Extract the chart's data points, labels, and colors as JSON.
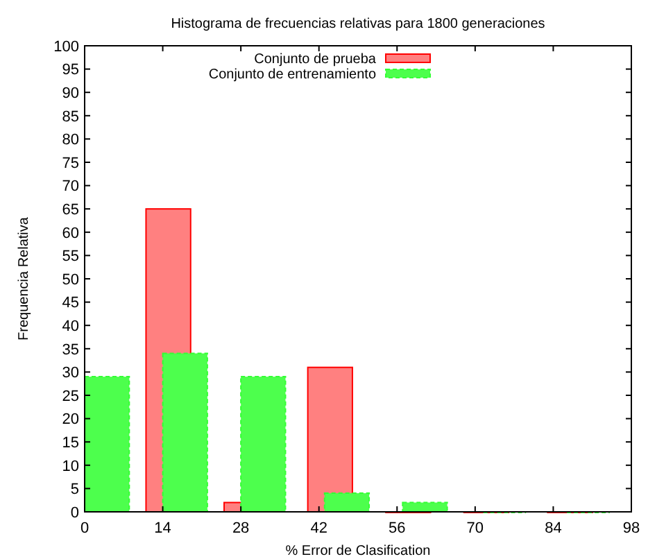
{
  "chart_data": {
    "type": "bar",
    "title": "Histograma de frecuencias relativas para 1800 generaciones",
    "xlabel": "% Error de Clasification",
    "ylabel": "Frequencia Relativa",
    "xlim": [
      0,
      98
    ],
    "xticks": [
      0,
      14,
      28,
      42,
      56,
      70,
      84,
      98
    ],
    "ylim": [
      0,
      100
    ],
    "yticks": [
      0,
      5,
      10,
      15,
      20,
      25,
      30,
      35,
      40,
      45,
      50,
      55,
      60,
      65,
      70,
      75,
      80,
      85,
      90,
      95,
      100
    ],
    "legend": "top",
    "grid": false,
    "series": [
      {
        "name": "Conjunto de prueba",
        "color": "#ff8080",
        "x": [
          15,
          29,
          44,
          58,
          72,
          87
        ],
        "values": [
          65,
          2,
          31,
          0,
          0,
          0
        ]
      },
      {
        "name": "Conjunto de entrenamiento",
        "color": "#4dff4d",
        "x": [
          4,
          18,
          32,
          47,
          61,
          75,
          90
        ],
        "values": [
          29,
          34,
          29,
          4,
          2,
          0,
          0
        ]
      }
    ]
  }
}
